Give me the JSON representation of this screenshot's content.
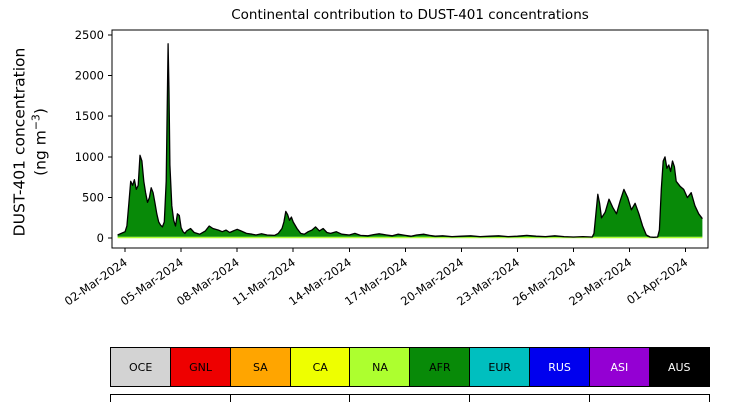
{
  "ylabel_display": {
    "line1": "DUST-401 concentration",
    "unit_open": "(ng m",
    "unit_exp": "−3",
    "unit_close": ")"
  },
  "chart_data": {
    "type": "area",
    "stacked": true,
    "title": "Continental contribution to DUST-401 concentrations",
    "xlabel": "",
    "ylabel": "DUST-401 concentration (ng m⁻³)",
    "ylim": [
      0,
      2500
    ],
    "yticks": [
      0,
      500,
      1000,
      1500,
      2000,
      2500
    ],
    "xtick_days": [
      1,
      4,
      7,
      10,
      13,
      16,
      19,
      22,
      25,
      28,
      31
    ],
    "xtick_labels": [
      "02-Mar-2024",
      "05-Mar-2024",
      "08-Mar-2024",
      "11-Mar-2024",
      "14-Mar-2024",
      "17-Mar-2024",
      "20-Mar-2024",
      "23-Mar-2024",
      "26-Mar-2024",
      "29-Mar-2024",
      "01-Apr-2024"
    ],
    "x_unit": "days since 01-Mar-2024 00:00",
    "legend_position": "below",
    "grid": false,
    "dominant_series": "AFR",
    "baseline_band": {
      "series": "NA",
      "value": 18
    },
    "colors": {
      "AFR": "#088a08",
      "NA": "#adff2f",
      "line": "#000000"
    },
    "x": [
      0.6,
      0.8,
      1.0,
      1.1,
      1.2,
      1.3,
      1.4,
      1.5,
      1.6,
      1.7,
      1.8,
      1.9,
      2.0,
      2.1,
      2.2,
      2.3,
      2.4,
      2.5,
      2.6,
      2.7,
      2.8,
      2.9,
      3.0,
      3.1,
      3.2,
      3.25,
      3.3,
      3.35,
      3.4,
      3.5,
      3.6,
      3.7,
      3.8,
      3.9,
      4.0,
      4.1,
      4.2,
      4.3,
      4.5,
      4.7,
      5.0,
      5.3,
      5.5,
      5.7,
      6.0,
      6.2,
      6.4,
      6.6,
      6.8,
      7.0,
      7.2,
      7.5,
      7.8,
      8.0,
      8.3,
      8.6,
      9.0,
      9.2,
      9.4,
      9.5,
      9.6,
      9.7,
      9.8,
      9.9,
      10.0,
      10.2,
      10.4,
      10.6,
      10.8,
      11.0,
      11.2,
      11.4,
      11.6,
      11.8,
      12.0,
      12.3,
      12.6,
      13.0,
      13.3,
      13.6,
      14.0,
      14.3,
      14.6,
      15.0,
      15.3,
      15.6,
      16.0,
      16.3,
      16.6,
      17.0,
      17.3,
      17.6,
      18.0,
      18.5,
      19.0,
      19.5,
      20.0,
      20.5,
      21.0,
      21.5,
      22.0,
      22.5,
      23.0,
      23.5,
      24.0,
      24.5,
      25.0,
      25.5,
      26.0,
      26.1,
      26.2,
      26.3,
      26.4,
      26.5,
      26.7,
      26.9,
      27.1,
      27.3,
      27.5,
      27.7,
      27.9,
      28.1,
      28.3,
      28.5,
      28.7,
      28.9,
      29.1,
      29.3,
      29.5,
      29.6,
      29.7,
      29.8,
      29.9,
      30.0,
      30.1,
      30.2,
      30.3,
      30.4,
      30.5,
      30.7,
      30.9,
      31.1,
      31.3,
      31.5,
      31.7,
      31.9
    ],
    "total": [
      40,
      60,
      80,
      150,
      420,
      700,
      650,
      720,
      600,
      650,
      1020,
      950,
      700,
      560,
      440,
      500,
      620,
      560,
      430,
      300,
      200,
      160,
      140,
      200,
      700,
      1500,
      2390,
      1800,
      900,
      400,
      220,
      150,
      300,
      280,
      130,
      80,
      60,
      90,
      120,
      70,
      50,
      90,
      150,
      120,
      100,
      80,
      100,
      70,
      90,
      110,
      90,
      60,
      50,
      40,
      55,
      40,
      35,
      60,
      120,
      200,
      330,
      290,
      220,
      260,
      200,
      120,
      60,
      50,
      80,
      100,
      140,
      90,
      120,
      70,
      60,
      80,
      50,
      40,
      60,
      35,
      30,
      45,
      55,
      40,
      30,
      50,
      35,
      25,
      40,
      50,
      35,
      25,
      30,
      20,
      25,
      30,
      20,
      25,
      30,
      20,
      25,
      35,
      25,
      20,
      30,
      20,
      15,
      20,
      15,
      60,
      300,
      540,
      430,
      250,
      320,
      480,
      380,
      300,
      460,
      600,
      500,
      350,
      430,
      300,
      150,
      40,
      15,
      12,
      15,
      100,
      600,
      950,
      1000,
      860,
      900,
      820,
      950,
      880,
      700,
      640,
      600,
      500,
      560,
      400,
      300,
      240
    ]
  },
  "legend": {
    "items": [
      {
        "label": "OCE",
        "color": "#d3d3d3",
        "text_color": "#000000"
      },
      {
        "label": "GNL",
        "color": "#ee0000",
        "text_color": "#000000"
      },
      {
        "label": "SA",
        "color": "#ffa500",
        "text_color": "#000000"
      },
      {
        "label": "CA",
        "color": "#eeff00",
        "text_color": "#000000"
      },
      {
        "label": "NA",
        "color": "#adff2f",
        "text_color": "#000000"
      },
      {
        "label": "AFR",
        "color": "#088a08",
        "text_color": "#000000"
      },
      {
        "label": "EUR",
        "color": "#00bfbf",
        "text_color": "#000000"
      },
      {
        "label": "RUS",
        "color": "#0000ee",
        "text_color": "#ffffff"
      },
      {
        "label": "ASI",
        "color": "#9400d3",
        "text_color": "#ffffff"
      },
      {
        "label": "AUS",
        "color": "#000000",
        "text_color": "#ffffff"
      }
    ]
  }
}
